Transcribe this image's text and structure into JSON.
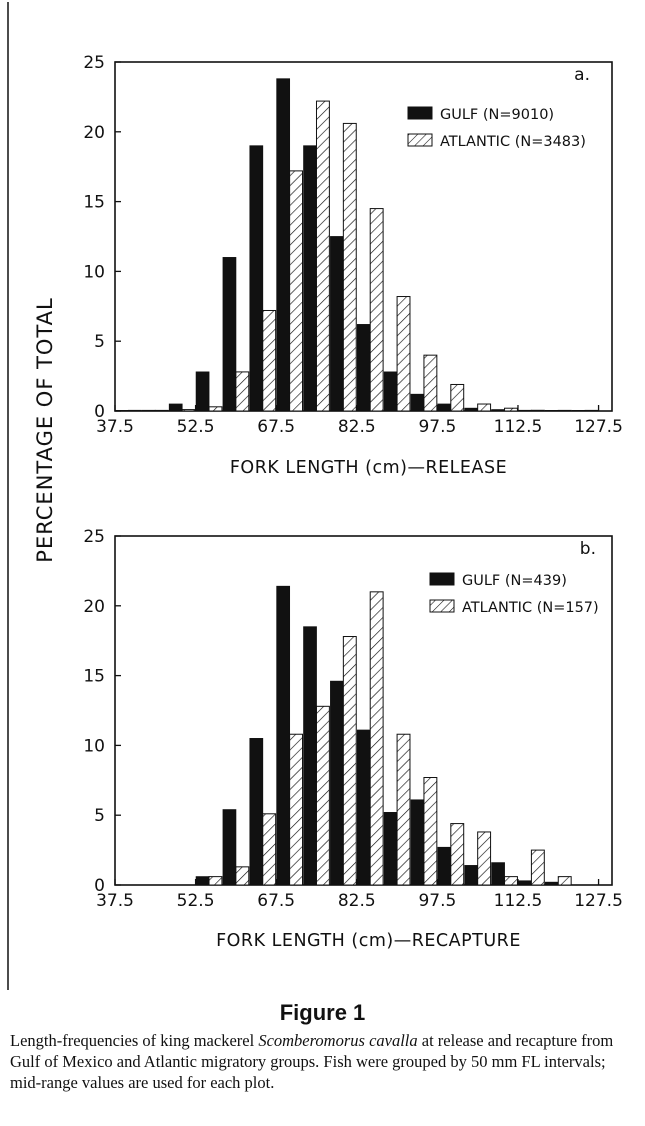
{
  "ylabel": "PERCENTAGE OF TOTAL",
  "figure_title": "Figure 1",
  "caption": {
    "before": "Length-frequencies of king mackerel ",
    "species": "Scomberomorus cavalla",
    "after": " at release and recapture from Gulf of Mexico and Atlantic migratory groups. Fish were grouped by 50 mm FL intervals; mid-range values are used for each plot."
  },
  "colors": {
    "gulf": "#111111",
    "atlantic_fill": "#ffffff",
    "axis": "#111111"
  },
  "chart_data": [
    {
      "type": "bar",
      "panel_label": "a.",
      "xlabel": "FORK LENGTH (cm)—RELEASE",
      "ylim": [
        0,
        25
      ],
      "yticks": [
        0,
        5,
        10,
        15,
        20,
        25
      ],
      "xlim": [
        37.5,
        130
      ],
      "xticks": [
        37.5,
        52.5,
        67.5,
        82.5,
        97.5,
        112.5,
        127.5
      ],
      "legend_position": "top-right",
      "series": [
        {
          "name": "GULF (N=9010)",
          "style": "solid",
          "x": [
            40,
            45,
            50,
            55,
            60,
            65,
            70,
            75,
            80,
            85,
            90,
            95,
            100,
            105,
            110,
            115,
            120,
            125
          ],
          "values": [
            0,
            0.05,
            0.5,
            2.8,
            11.0,
            19.0,
            23.8,
            19.0,
            12.5,
            6.2,
            2.8,
            1.2,
            0.5,
            0.2,
            0.1,
            0.05,
            0,
            0
          ]
        },
        {
          "name": "ATLANTIC (N=3483)",
          "style": "hatched",
          "x": [
            40,
            45,
            50,
            55,
            60,
            65,
            70,
            75,
            80,
            85,
            90,
            95,
            100,
            105,
            110,
            115,
            120,
            125
          ],
          "values": [
            0,
            0,
            0.1,
            0.3,
            2.8,
            7.2,
            17.2,
            22.2,
            20.6,
            14.5,
            8.2,
            4.0,
            1.9,
            0.5,
            0.2,
            0.05,
            0,
            0
          ]
        }
      ]
    },
    {
      "type": "bar",
      "panel_label": "b.",
      "xlabel": "FORK LENGTH (cm)—RECAPTURE",
      "ylim": [
        0,
        25
      ],
      "yticks": [
        0,
        5,
        10,
        15,
        20,
        25
      ],
      "xlim": [
        37.5,
        130
      ],
      "xticks": [
        37.5,
        52.5,
        67.5,
        82.5,
        97.5,
        112.5,
        127.5
      ],
      "legend_position": "top-right",
      "series": [
        {
          "name": "GULF (N=439)",
          "style": "solid",
          "x": [
            55,
            60,
            65,
            70,
            75,
            80,
            85,
            90,
            95,
            100,
            105,
            110,
            115,
            120
          ],
          "values": [
            0.6,
            5.4,
            10.5,
            21.4,
            18.5,
            14.6,
            11.1,
            5.2,
            6.1,
            2.7,
            1.4,
            1.6,
            0.3,
            0.2
          ]
        },
        {
          "name": "ATLANTIC (N=157)",
          "style": "hatched",
          "x": [
            55,
            60,
            65,
            70,
            75,
            80,
            85,
            90,
            95,
            100,
            105,
            110,
            115,
            120
          ],
          "values": [
            0.6,
            1.3,
            5.1,
            10.8,
            12.8,
            17.8,
            21.0,
            10.8,
            7.7,
            4.4,
            3.8,
            0.6,
            2.5,
            0.6
          ]
        }
      ]
    }
  ]
}
